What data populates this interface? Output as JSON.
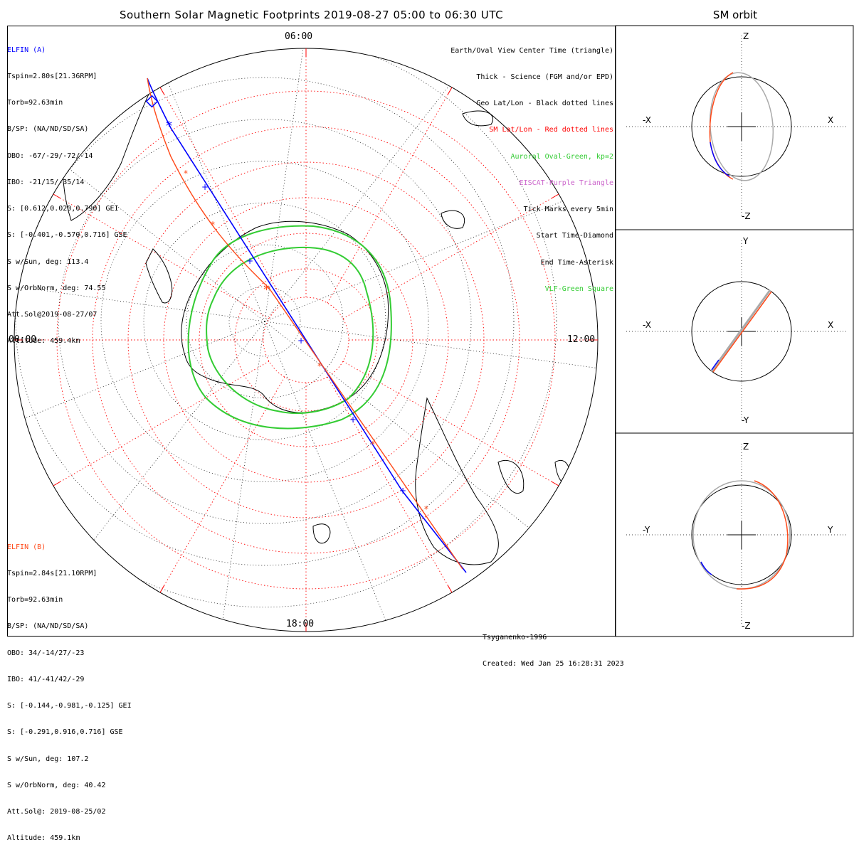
{
  "title": "Southern Solar Magnetic Footprints 2019-08-27 05:00 to 06:30 UTC",
  "sm_orbit_title": "SM orbit",
  "elfin_a": {
    "name": "ELFIN (A)",
    "lines": [
      "Tspin=2.80s[21.36RPM]",
      "Torb=92.63min",
      "B/SP: (NA/ND/SD/SA)",
      "OBO: -67/-29/-72/-14",
      "IBO: -21/15/-35/14",
      "S: [0.612,0.020,0.790] GEI",
      "S: [-0.401,-0.570,0.716] GSE",
      "S w/Sun, deg: 113.4",
      "S w/OrbNorm, deg: 74.55",
      "Att.Sol@2019-08-27/07",
      "Altitude: 459.4km"
    ],
    "color": "#0000ff"
  },
  "elfin_b": {
    "name": "ELFIN (B)",
    "lines": [
      "Tspin=2.84s[21.10RPM]",
      "Torb=92.63min",
      "B/SP: (NA/ND/SD/SA)",
      "OBO: 34/-14/27/-23",
      "IBO: 41/-41/42/-29",
      "S: [-0.144,-0.981,-0.125] GEI",
      "S: [-0.291,0.916,0.716] GSE",
      "S w/Sun, deg: 107.2",
      "S w/OrbNorm, deg: 40.42",
      "Att.Sol@: 2019-08-25/02",
      "Altitude: 459.1km"
    ],
    "color": "#ff4a1a"
  },
  "legend": [
    {
      "text": "Earth/Oval View Center Time (triangle)",
      "color": "#000000"
    },
    {
      "text": "Thick - Science (FGM and/or EPD)",
      "color": "#000000"
    },
    {
      "text": "Geo Lat/Lon - Black dotted lines",
      "color": "#000000"
    },
    {
      "text": "SM Lat/Lon - Red dotted lines",
      "color": "#ff0000"
    },
    {
      "text": "Auroral Oval-Green, kp=2",
      "color": "#33cc33"
    },
    {
      "text": "EISCAT-Purple Triangle",
      "color": "#cc66cc"
    },
    {
      "text": "Tick Marks every 5min",
      "color": "#000000"
    },
    {
      "text": "Start Time-Diamond",
      "color": "#000000"
    },
    {
      "text": "End Time-Asterisk",
      "color": "#000000"
    },
    {
      "text": "VLF-Green Square",
      "color": "#33cc33"
    }
  ],
  "mlt_labels": {
    "top": "06:00",
    "left": "00:00",
    "right": "12:00",
    "bottom": "18:00"
  },
  "footer": [
    "Tsyganenko-1996",
    "Created: Wed Jan 25 16:28:31 2023"
  ],
  "sm_panels": [
    {
      "top": "Z",
      "bottom": "-Z",
      "left": "-X",
      "right": "X"
    },
    {
      "top": "Y",
      "bottom": "-Y",
      "left": "-X",
      "right": "X"
    },
    {
      "top": "Z",
      "bottom": "-Z",
      "left": "-Y",
      "right": "Y"
    }
  ],
  "colors": {
    "elfin_a": "#0000ff",
    "elfin_b": "#ff4a1a",
    "oval": "#33cc33",
    "sm_grid": "#ff0000",
    "geo_grid": "#000000",
    "orbit_gray": "#aaaaaa"
  }
}
